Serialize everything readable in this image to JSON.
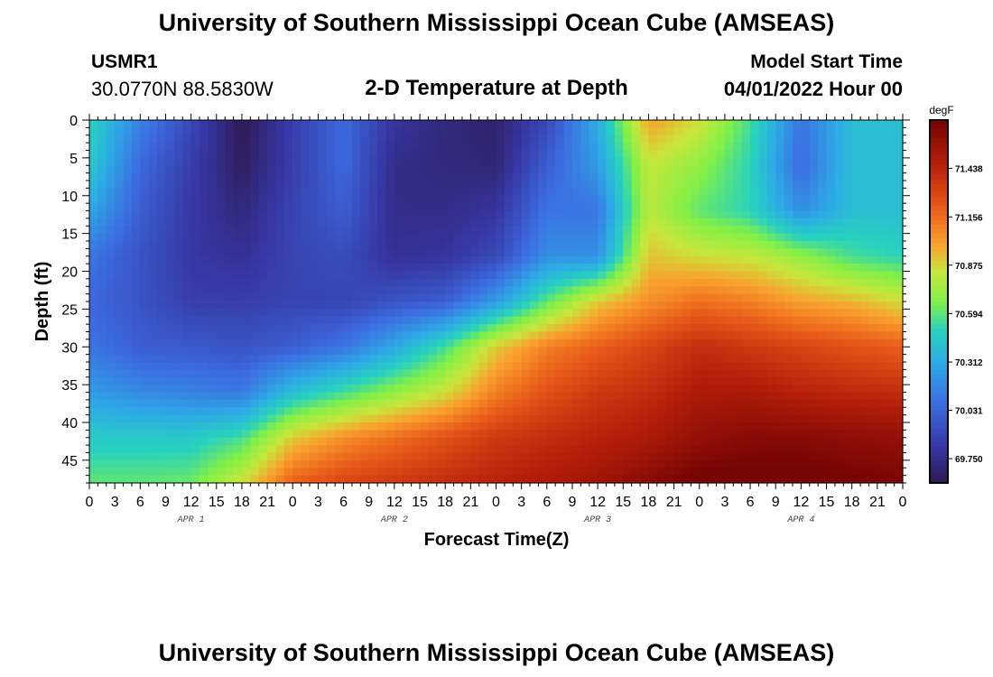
{
  "header": {
    "title": "University of Southern Mississippi Ocean Cube (AMSEAS)",
    "station": "USMR1",
    "coordinates": "30.0770N  88.5830W",
    "subtitle": "2-D Temperature at Depth",
    "model_start_label": "Model Start Time",
    "model_start_value": "04/01/2022 Hour 00"
  },
  "footer": {
    "title": "University of Southern Mississippi Ocean Cube (AMSEAS)"
  },
  "chart_data": {
    "type": "heatmap",
    "title": "2-D Temperature at Depth",
    "xlabel": "Forecast Time(Z)",
    "ylabel": "Depth (ft)",
    "x_ticks": [
      "0",
      "3",
      "6",
      "9",
      "12",
      "15",
      "18",
      "21",
      "0",
      "3",
      "6",
      "9",
      "12",
      "15",
      "18",
      "21",
      "0",
      "3",
      "6",
      "9",
      "12",
      "15",
      "18",
      "21",
      "0",
      "3",
      "6",
      "9",
      "12",
      "15",
      "18",
      "21",
      "0"
    ],
    "day_labels": [
      {
        "label": "APR 1",
        "hour": 12
      },
      {
        "label": "APR 2",
        "hour": 36
      },
      {
        "label": "APR 3",
        "hour": 60
      },
      {
        "label": "APR 4",
        "hour": 84
      }
    ],
    "xlim": [
      0,
      96
    ],
    "ylim": [
      0,
      48
    ],
    "y_ticks": [
      0,
      5,
      10,
      15,
      20,
      25,
      30,
      35,
      40,
      45
    ],
    "colorbar": {
      "unit": "degF",
      "ticks": [
        "71.438",
        "71.156",
        "70.875",
        "70.594",
        "70.312",
        "70.031",
        "69.750"
      ],
      "tick_values": [
        71.438,
        71.156,
        70.875,
        70.594,
        70.312,
        70.031,
        69.75
      ],
      "range": [
        69.609,
        71.719
      ]
    },
    "grid": {
      "hours": [
        0,
        6,
        12,
        18,
        24,
        30,
        36,
        42,
        48,
        54,
        60,
        66,
        72,
        78,
        84,
        90,
        96
      ],
      "depths": [
        0,
        6,
        12,
        18,
        24,
        30,
        36,
        42,
        48
      ],
      "temperature": [
        [
          70.5,
          70.15,
          69.9,
          69.62,
          69.85,
          70.05,
          69.8,
          69.72,
          69.68,
          69.9,
          70.32,
          71.0,
          70.85,
          70.55,
          70.1,
          70.4,
          70.4
        ],
        [
          70.45,
          70.05,
          69.85,
          69.65,
          69.85,
          70.05,
          69.75,
          69.72,
          69.7,
          70.0,
          70.25,
          70.82,
          70.7,
          70.5,
          70.05,
          70.4,
          70.4
        ],
        [
          70.3,
          70.0,
          69.82,
          69.72,
          69.88,
          70.0,
          69.75,
          69.75,
          69.8,
          70.1,
          70.1,
          70.8,
          70.6,
          70.5,
          70.2,
          70.4,
          70.4
        ],
        [
          70.1,
          69.95,
          69.82,
          69.78,
          69.88,
          69.92,
          69.78,
          69.8,
          69.9,
          70.2,
          70.2,
          70.92,
          70.85,
          70.82,
          70.7,
          70.55,
          70.5
        ],
        [
          70.05,
          69.95,
          69.85,
          69.85,
          69.88,
          69.88,
          69.95,
          70.0,
          70.25,
          70.6,
          70.9,
          71.05,
          71.15,
          71.1,
          71.0,
          70.95,
          70.85
        ],
        [
          70.1,
          70.0,
          69.98,
          69.95,
          70.0,
          70.1,
          70.3,
          70.55,
          70.9,
          71.1,
          71.2,
          71.3,
          71.4,
          71.35,
          71.3,
          71.25,
          71.2
        ],
        [
          70.25,
          70.18,
          70.15,
          70.12,
          70.4,
          70.55,
          70.7,
          70.85,
          71.1,
          71.25,
          71.35,
          71.4,
          71.5,
          71.5,
          71.45,
          71.42,
          71.4
        ],
        [
          70.45,
          70.45,
          70.45,
          70.55,
          70.9,
          71.05,
          71.15,
          71.25,
          71.35,
          71.4,
          71.45,
          71.5,
          71.6,
          71.65,
          71.65,
          71.62,
          71.6
        ],
        [
          70.6,
          70.6,
          70.62,
          70.85,
          71.2,
          71.3,
          71.35,
          71.4,
          71.45,
          71.5,
          71.55,
          71.65,
          71.75,
          71.75,
          71.75,
          71.72,
          71.7
        ]
      ]
    }
  }
}
